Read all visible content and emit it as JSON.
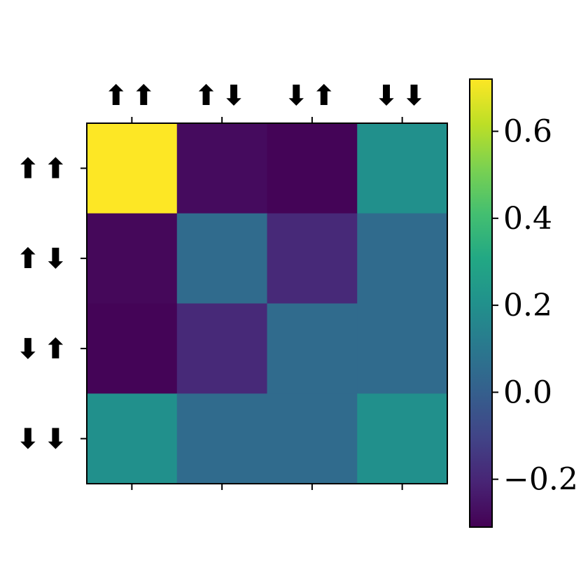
{
  "chart_data": {
    "type": "heatmap",
    "title": "",
    "xlabel": "",
    "ylabel": "",
    "x_tick_labels": [
      "⬆⬆",
      "⬆⬇",
      "⬇⬆",
      "⬇⬇"
    ],
    "y_tick_labels": [
      "⬆⬆",
      "⬆⬇",
      "⬇⬆",
      "⬇⬇"
    ],
    "x_ticks_position": "top",
    "values": [
      [
        0.72,
        -0.28,
        -0.3,
        0.2
      ],
      [
        -0.29,
        0.05,
        -0.19,
        0.05
      ],
      [
        -0.3,
        -0.19,
        0.05,
        0.05
      ],
      [
        0.2,
        0.05,
        0.05,
        0.2
      ]
    ],
    "colormap": "viridis",
    "colorbar": {
      "vmin": -0.31,
      "vmax": 0.72,
      "ticks": [
        -0.2,
        0.0,
        0.2,
        0.4,
        0.6
      ],
      "tick_labels": [
        "−0.2",
        "0.0",
        "0.2",
        "0.4",
        "0.6"
      ]
    }
  }
}
